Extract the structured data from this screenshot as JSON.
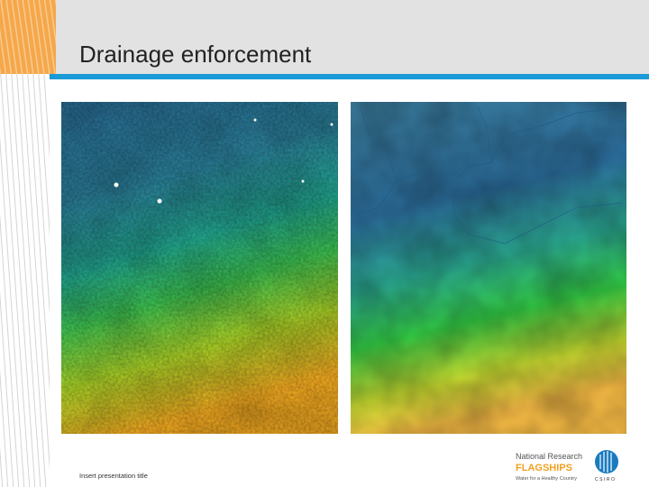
{
  "header": {
    "title": "Drainage enforcement"
  },
  "footer": {
    "text": "Insert presentation title"
  },
  "logo": {
    "line1": "National Research",
    "line2": "FLAGSHIPS",
    "line3": "Water for a Healthy Country",
    "org": "CSIRO"
  }
}
